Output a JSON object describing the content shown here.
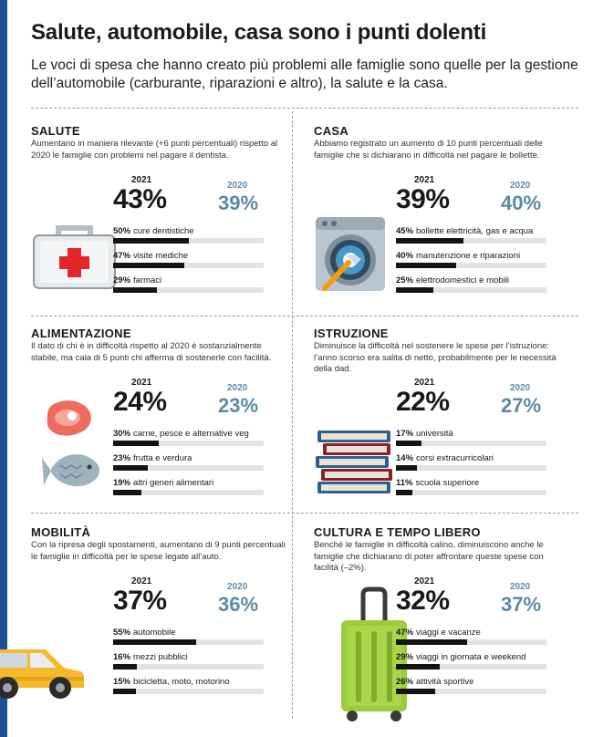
{
  "header": {
    "title": "Salute, automobile, casa sono i punti dolenti",
    "subtitle": "Le voci di spesa che hanno creato più problemi alle famiglie sono quelle per la gestione dell’automobile (carburante, riparazioni e altro), la salute e la casa."
  },
  "colors": {
    "accent": "#1d4f91",
    "value2021": "#1a1a1a",
    "value2020": "#5b8aa6",
    "bar": "#141414",
    "track": "#e3e3e3"
  },
  "chart_data": [
    {
      "type": "bar",
      "title": "SALUTE",
      "description": "Aumentano in maniera rilevante (+6 punti percentuali) rispetto al 2020 le famiglie con problemi nel pagare il dentista.",
      "total": {
        "y2021_label": "2021",
        "y2021": "43%",
        "y2020_label": "2020",
        "y2020": "39%"
      },
      "categories": [
        "cure dentistiche",
        "visite mediche",
        "farmaci"
      ],
      "values": [
        50,
        47,
        29
      ],
      "labels": [
        "50%",
        "47%",
        "29%"
      ],
      "icon": "first-aid-kit-icon"
    },
    {
      "type": "bar",
      "title": "CASA",
      "description": "Abbiamo registrato un aumento di 10 punti percentuali delle famiglie che si dichiarano in difficoltà nel pagare le bollette.",
      "total": {
        "y2021_label": "2021",
        "y2021": "39%",
        "y2020_label": "2020",
        "y2020": "40%"
      },
      "categories": [
        "bollette elettricità, gas e acqua",
        "manutenzione e riparazioni",
        "elettrodomestici e mobili"
      ],
      "values": [
        45,
        40,
        25
      ],
      "labels": [
        "45%",
        "40%",
        "25%"
      ],
      "icon": "washing-machine-icon"
    },
    {
      "type": "bar",
      "title": "ALIMENTAZIONE",
      "description": "Il dato di chi è in difficoltà rispetto al 2020 è sostanzialmente stabile, ma cala di 5 punti chi afferma di sostenerle con facilità.",
      "total": {
        "y2021_label": "2021",
        "y2021": "24%",
        "y2020_label": "2020",
        "y2020": "23%"
      },
      "categories": [
        "carne, pesce e alternative veg",
        "frutta e verdura",
        "altri generi alimentari"
      ],
      "values": [
        30,
        23,
        19
      ],
      "labels": [
        "30%",
        "23%",
        "19%"
      ],
      "icon": "meat-fish-icon"
    },
    {
      "type": "bar",
      "title": "ISTRUZIONE",
      "description": "Diminuisce la difficoltà nel sostenere le spese per l’istruzione: l’anno scorso era salita di netto, probabilmente per le necessità della dad.",
      "total": {
        "y2021_label": "2021",
        "y2021": "22%",
        "y2020_label": "2020",
        "y2020": "27%"
      },
      "categories": [
        "università",
        "corsi extracurricolari",
        "scuola superiore"
      ],
      "values": [
        17,
        14,
        11
      ],
      "labels": [
        "17%",
        "14%",
        "11%"
      ],
      "icon": "books-icon"
    },
    {
      "type": "bar",
      "title": "MOBILITÀ",
      "description": "Con la ripresa degli spostamenti, aumentano di 9 punti percentuali le famiglie in difficoltà per le spese legate all’auto.",
      "total": {
        "y2021_label": "2021",
        "y2021": "37%",
        "y2020_label": "2020",
        "y2020": "36%"
      },
      "categories": [
        "automobile",
        "mezzi pubblici",
        "bicicletta, moto, motorino"
      ],
      "values": [
        55,
        16,
        15
      ],
      "labels": [
        "55%",
        "16%",
        "15%"
      ],
      "icon": "car-icon"
    },
    {
      "type": "bar",
      "title": "CULTURA E TEMPO LIBERO",
      "description": "Benché le famiglie in difficoltà calino, diminuiscono anche le famiglie che dichiarano di poter affrontare queste spese con facilità (–2%).",
      "total": {
        "y2021_label": "2021",
        "y2021": "32%",
        "y2020_label": "2020",
        "y2020": "37%"
      },
      "categories": [
        "viaggi e vacanze",
        "viaggi in giornata e weekend",
        "attività sportive"
      ],
      "values": [
        47,
        29,
        26
      ],
      "labels": [
        "47%",
        "29%",
        "26%"
      ],
      "icon": "suitcase-icon"
    }
  ]
}
